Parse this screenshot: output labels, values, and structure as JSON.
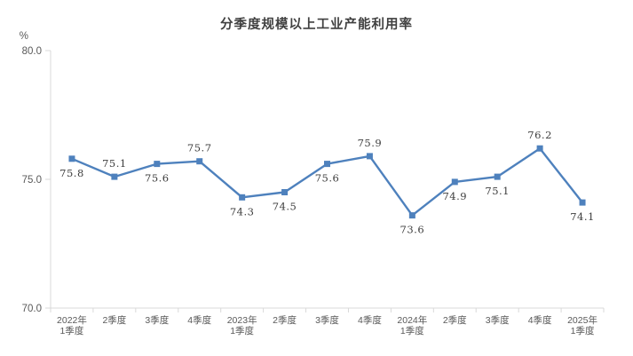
{
  "chart": {
    "title": "分季度规模以上工业产能利用率",
    "unit_label": "%"
  },
  "chart_data": {
    "type": "line",
    "title": "分季度规模以上工业产能利用率",
    "ylabel": "%",
    "ylim": [
      70.0,
      80.0
    ],
    "yticks": [
      70.0,
      75.0,
      80.0
    ],
    "ytick_labels": [
      "70.0",
      "75.0",
      "80.0"
    ],
    "grid": false,
    "legend_position": "none",
    "line_color": "#4e81bd",
    "marker_color": "#4e81bd",
    "marker_shape": "square",
    "axis_color": "#d9d9d9",
    "tick_text_color": "#595959",
    "categories": [
      "2022年\n1季度",
      "2季度",
      "3季度",
      "4季度",
      "2023年\n1季度",
      "2季度",
      "3季度",
      "4季度",
      "2024年\n1季度",
      "2季度",
      "3季度",
      "4季度",
      "2025年\n1季度"
    ],
    "values": [
      75.8,
      75.1,
      75.6,
      75.7,
      74.3,
      74.5,
      75.6,
      75.9,
      73.6,
      74.9,
      75.1,
      76.2,
      74.1
    ],
    "data_labels": [
      "75.8",
      "75.1",
      "75.6",
      "75.7",
      "74.3",
      "74.5",
      "75.6",
      "75.9",
      "73.6",
      "74.9",
      "75.1",
      "76.2",
      "74.1"
    ],
    "label_positions": [
      "below",
      "above",
      "below",
      "above",
      "below",
      "below",
      "below",
      "above",
      "below",
      "below",
      "below",
      "above",
      "below"
    ]
  }
}
